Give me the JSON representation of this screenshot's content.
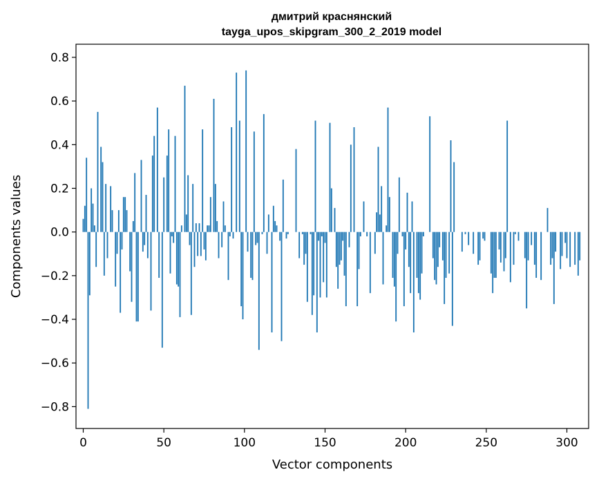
{
  "chart_data": {
    "type": "bar",
    "title": "дмитрий краснянский",
    "subtitle": "tayga_upos_skipgram_300_2_2019 model",
    "xlabel": "Vector components",
    "ylabel": "Components values",
    "xlim": [
      -4.5,
      313.5
    ],
    "ylim": [
      -0.9,
      0.86
    ],
    "xticks": [
      0,
      50,
      100,
      150,
      200,
      250,
      300
    ],
    "xtick_labels": [
      "0",
      "50",
      "100",
      "150",
      "200",
      "250",
      "300"
    ],
    "yticks": [
      0.8,
      0.6,
      0.4,
      0.2,
      0.0,
      -0.2,
      -0.4,
      -0.6,
      -0.8
    ],
    "ytick_labels": [
      "0.8",
      "0.6",
      "0.4",
      "0.2",
      "0.0",
      "−0.2",
      "−0.4",
      "−0.6",
      "−0.8"
    ],
    "bar_color": "#1f77b4",
    "grid": false,
    "values": [
      0.06,
      0.12,
      0.34,
      -0.81,
      -0.29,
      0.2,
      0.13,
      0.03,
      -0.16,
      0.55,
      0.0,
      0.39,
      0.32,
      -0.2,
      0.22,
      -0.12,
      0.0,
      0.21,
      0.1,
      0.0,
      -0.25,
      -0.1,
      0.1,
      -0.37,
      -0.08,
      0.16,
      0.16,
      0.1,
      0.0,
      -0.18,
      -0.32,
      0.05,
      0.27,
      -0.41,
      -0.41,
      0.0,
      0.33,
      -0.09,
      -0.06,
      0.17,
      -0.12,
      0.0,
      -0.36,
      0.35,
      0.44,
      0.0,
      0.57,
      -0.21,
      0.0,
      -0.53,
      0.25,
      0.0,
      0.35,
      0.47,
      -0.19,
      -0.02,
      -0.05,
      0.44,
      -0.24,
      -0.25,
      -0.39,
      0.03,
      0.0,
      0.67,
      0.08,
      0.26,
      -0.06,
      -0.38,
      0.22,
      -0.16,
      0.04,
      -0.11,
      0.04,
      -0.11,
      0.47,
      -0.08,
      -0.13,
      0.03,
      0.03,
      0.16,
      0.0,
      0.61,
      0.22,
      0.05,
      -0.12,
      0.0,
      -0.07,
      0.14,
      0.03,
      0.0,
      -0.22,
      -0.02,
      0.48,
      -0.03,
      0.0,
      0.73,
      0.0,
      0.51,
      -0.34,
      -0.4,
      0.0,
      0.74,
      -0.09,
      0.0,
      -0.21,
      -0.22,
      0.46,
      -0.06,
      -0.05,
      -0.54,
      0.0,
      -0.01,
      0.54,
      0.0,
      -0.1,
      0.08,
      0.0,
      -0.46,
      0.12,
      0.05,
      0.03,
      0.0,
      -0.04,
      -0.5,
      0.24,
      0.0,
      -0.03,
      -0.01,
      0.0,
      0.0,
      0.0,
      0.0,
      0.38,
      0.0,
      -0.12,
      0.0,
      -0.01,
      -0.15,
      -0.1,
      -0.32,
      0.0,
      -0.01,
      -0.38,
      -0.29,
      0.51,
      -0.46,
      -0.04,
      -0.3,
      -0.02,
      -0.23,
      -0.05,
      -0.3,
      0.0,
      0.5,
      0.2,
      0.0,
      0.11,
      -0.16,
      -0.26,
      -0.15,
      -0.13,
      -0.04,
      -0.2,
      -0.34,
      0.0,
      -0.07,
      0.4,
      0.0,
      0.48,
      0.0,
      -0.34,
      -0.17,
      -0.02,
      0.0,
      0.14,
      0.0,
      -0.02,
      0.0,
      -0.28,
      0.0,
      0.0,
      -0.1,
      0.09,
      0.39,
      0.08,
      0.21,
      -0.24,
      0.0,
      0.03,
      0.57,
      0.16,
      0.0,
      -0.21,
      -0.25,
      -0.41,
      -0.1,
      0.25,
      0.0,
      -0.02,
      -0.34,
      -0.08,
      0.18,
      -0.16,
      -0.28,
      0.14,
      -0.46,
      0.0,
      -0.21,
      -0.28,
      -0.31,
      -0.19,
      -0.02,
      0.0,
      0.0,
      0.0,
      0.53,
      0.0,
      -0.12,
      -0.22,
      -0.24,
      -0.16,
      -0.07,
      0.0,
      -0.13,
      -0.33,
      -0.21,
      0.0,
      -0.19,
      0.42,
      -0.43,
      0.32,
      0.0,
      0.0,
      0.0,
      0.0,
      -0.09,
      0.0,
      -0.01,
      0.0,
      -0.06,
      0.0,
      0.0,
      -0.1,
      0.0,
      0.0,
      -0.15,
      -0.13,
      0.0,
      -0.03,
      -0.04,
      0.0,
      0.0,
      0.0,
      -0.19,
      -0.28,
      -0.21,
      -0.21,
      0.0,
      -0.08,
      -0.14,
      0.0,
      -0.18,
      -0.12,
      0.51,
      0.0,
      -0.23,
      0.0,
      -0.15,
      -0.01,
      0.0,
      -0.04,
      0.0,
      0.0,
      0.0,
      -0.12,
      -0.35,
      -0.13,
      0.0,
      -0.06,
      0.0,
      -0.15,
      -0.21,
      0.0,
      0.0,
      -0.22,
      0.0,
      0.0,
      0.0,
      0.11,
      0.0,
      -0.15,
      -0.12,
      -0.33,
      -0.09,
      0.0,
      0.0,
      -0.17,
      -0.11,
      0.0,
      -0.05,
      -0.12,
      0.0,
      -0.16,
      0.0,
      0.0,
      -0.15,
      0.0,
      -0.2,
      -0.13,
      0.0
    ]
  }
}
